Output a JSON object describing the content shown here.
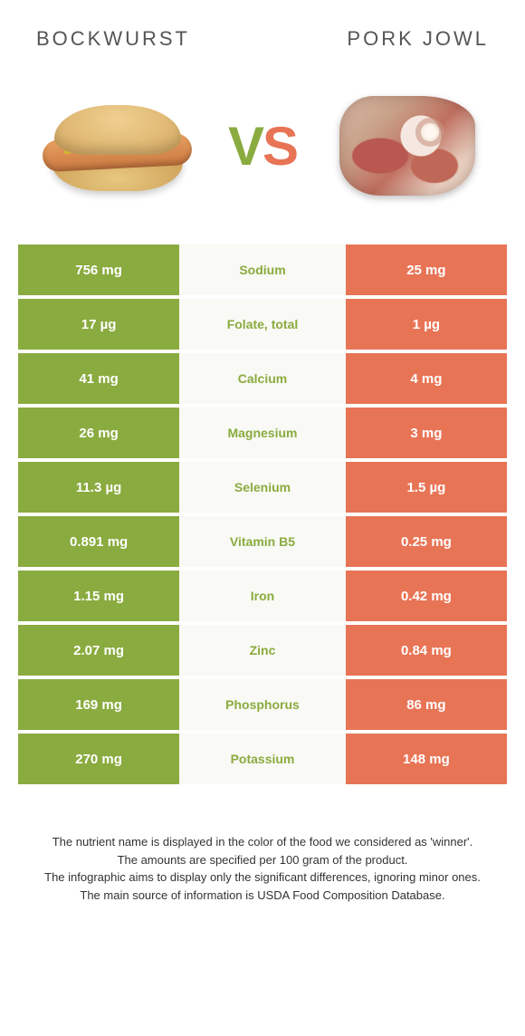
{
  "header": {
    "left_title": "Bockwurst",
    "right_title": "Pork jowl"
  },
  "vs": {
    "v": "V",
    "s": "S"
  },
  "colors": {
    "left": "#8aab3f",
    "right": "#e87456",
    "mid_bg": "#f9f9f5"
  },
  "nutrients": [
    {
      "name": "Sodium",
      "left": "756 mg",
      "right": "25 mg",
      "winner": "left"
    },
    {
      "name": "Folate, total",
      "left": "17 µg",
      "right": "1 µg",
      "winner": "left"
    },
    {
      "name": "Calcium",
      "left": "41 mg",
      "right": "4 mg",
      "winner": "left"
    },
    {
      "name": "Magnesium",
      "left": "26 mg",
      "right": "3 mg",
      "winner": "left"
    },
    {
      "name": "Selenium",
      "left": "11.3 µg",
      "right": "1.5 µg",
      "winner": "left"
    },
    {
      "name": "Vitamin B5",
      "left": "0.891 mg",
      "right": "0.25 mg",
      "winner": "left"
    },
    {
      "name": "Iron",
      "left": "1.15 mg",
      "right": "0.42 mg",
      "winner": "left"
    },
    {
      "name": "Zinc",
      "left": "2.07 mg",
      "right": "0.84 mg",
      "winner": "left"
    },
    {
      "name": "Phosphorus",
      "left": "169 mg",
      "right": "86 mg",
      "winner": "left"
    },
    {
      "name": "Potassium",
      "left": "270 mg",
      "right": "148 mg",
      "winner": "left"
    }
  ],
  "footnotes": [
    "The nutrient name is displayed in the color of the food we considered as 'winner'.",
    "The amounts are specified per 100 gram of the product.",
    "The infographic aims to display only the significant differences, ignoring minor ones.",
    "The main source of information is USDA Food Composition Database."
  ]
}
